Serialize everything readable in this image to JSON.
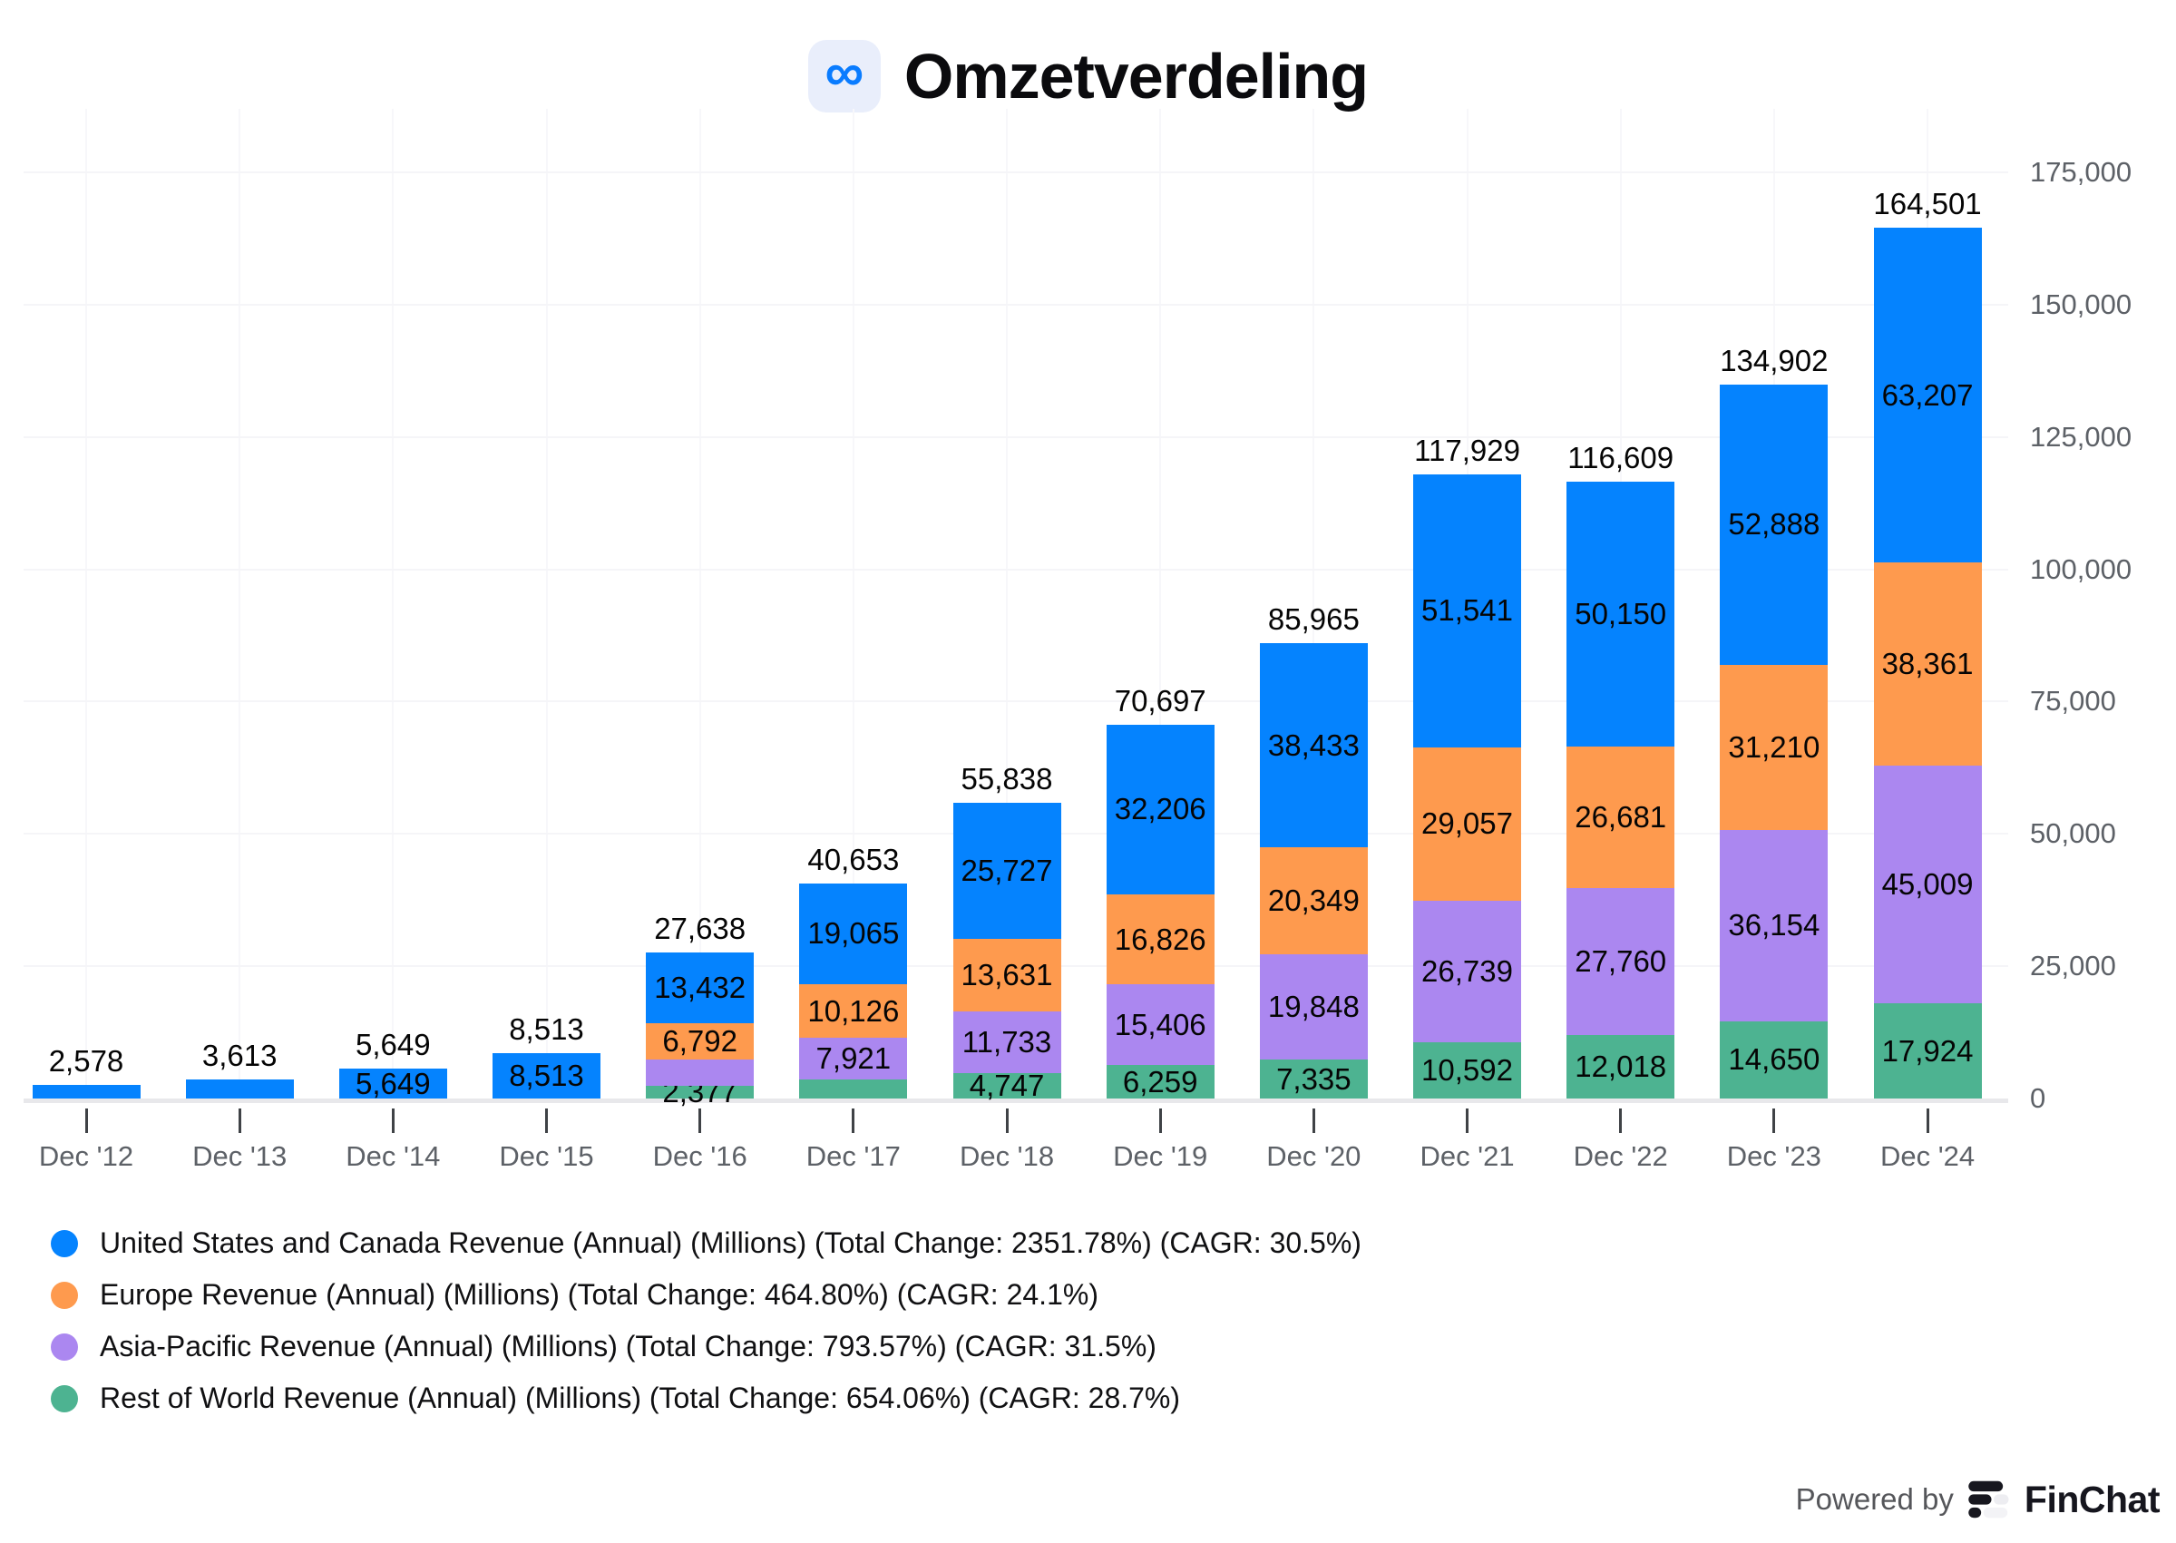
{
  "chart_data": {
    "type": "bar",
    "stacked": true,
    "title": "Omzetverdeling",
    "categories": [
      "Dec '12",
      "Dec '13",
      "Dec '14",
      "Dec '15",
      "Dec '16",
      "Dec '17",
      "Dec '18",
      "Dec '19",
      "Dec '20",
      "Dec '21",
      "Dec '22",
      "Dec '23",
      "Dec '24"
    ],
    "series": [
      {
        "key": "us-canada",
        "name": "United States and Canada Revenue (Annual) (Millions)",
        "color": "#0583fe",
        "values": [
          2578,
          3613,
          5649,
          8513,
          13432,
          19065,
          25727,
          32206,
          38433,
          51541,
          50150,
          52888,
          63207
        ]
      },
      {
        "key": "europe",
        "name": "Europe Revenue (Annual) (Millions)",
        "color": "#fe9a4e",
        "values": [
          null,
          null,
          null,
          null,
          6792,
          10126,
          13631,
          16826,
          20349,
          29057,
          26681,
          31210,
          38361
        ]
      },
      {
        "key": "asia-pacific",
        "name": "Asia-Pacific Revenue (Annual) (Millions)",
        "color": "#ab87f0",
        "values": [
          null,
          null,
          null,
          null,
          5037,
          7921,
          11733,
          15406,
          19848,
          26739,
          27760,
          36154,
          45009
        ]
      },
      {
        "key": "rest-of-world",
        "name": "Rest of World Revenue (Annual) (Millions)",
        "color": "#4db391",
        "values": [
          null,
          null,
          null,
          null,
          2377,
          3541,
          4747,
          6259,
          7335,
          10592,
          12018,
          14650,
          17924
        ]
      }
    ],
    "stack_order_bottom_to_top": [
      "rest-of-world",
      "asia-pacific",
      "europe",
      "us-canada"
    ],
    "totals": [
      2578,
      3613,
      5649,
      8513,
      27638,
      40653,
      55838,
      70697,
      85965,
      117929,
      116609,
      134902,
      164501
    ],
    "hidden_segment_labels": [
      [
        0,
        0
      ],
      [
        0,
        1
      ],
      [
        2,
        4
      ],
      [
        3,
        5
      ]
    ],
    "ylim": [
      0,
      175000
    ],
    "y_tick_labels": [
      "0",
      "25,000",
      "50,000",
      "75,000",
      "100,000",
      "125,000",
      "150,000",
      "175,000"
    ],
    "y_axis_side": "right",
    "grid": true,
    "legend_position": "bottom-left"
  },
  "header": {
    "logo_icon": "meta-infinity-icon"
  },
  "legend": {
    "items": [
      {
        "label": "United States and Canada Revenue (Annual) (Millions) (Total Change: 2351.78%) (CAGR: 30.5%)",
        "color": "#0583fe"
      },
      {
        "label": "Europe Revenue (Annual) (Millions) (Total Change: 464.80%) (CAGR: 24.1%)",
        "color": "#fe9a4e"
      },
      {
        "label": "Asia-Pacific Revenue (Annual) (Millions) (Total Change: 793.57%) (CAGR: 31.5%)",
        "color": "#ab87f0"
      },
      {
        "label": "Rest of World Revenue (Annual) (Millions) (Total Change: 654.06%) (CAGR: 28.7%)",
        "color": "#4db391"
      }
    ]
  },
  "footer": {
    "powered_by": "Powered by",
    "brand": "FinChat"
  }
}
